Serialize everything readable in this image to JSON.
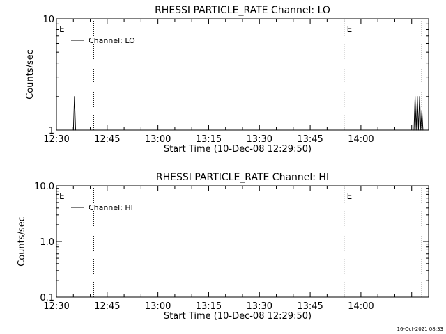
{
  "footer": {
    "timestamp": "16-Oct-2021 08:33"
  },
  "chart_data": [
    {
      "type": "line",
      "title": "RHESSI PARTICLE_RATE Channel: LO",
      "xlabel": "Start Time (10-Dec-08 12:29:50)",
      "ylabel": "Counts/sec",
      "x_unit": "time of day (10-Dec-08)",
      "xlim": [
        "12:30",
        "14:20"
      ],
      "xticks": [
        "12:30",
        "12:45",
        "13:00",
        "13:15",
        "13:30",
        "13:45",
        "14:00"
      ],
      "y_scale": "log",
      "ylim": [
        1,
        10
      ],
      "yticks": [
        {
          "value": 1,
          "label": "1"
        },
        {
          "value": 10,
          "label": "10"
        }
      ],
      "legend": {
        "placement": "top-left",
        "entries": [
          "Channel: LO"
        ]
      },
      "vlines": [
        {
          "x": "12:30",
          "style": "dotted",
          "label": "E"
        },
        {
          "x": "12:41",
          "style": "dotted",
          "label": ""
        },
        {
          "x": "13:55",
          "style": "dotted",
          "label": "E"
        },
        {
          "x": "14:18",
          "style": "dotted",
          "label": ""
        }
      ],
      "series": [
        {
          "name": "Channel: LO",
          "points": [
            {
              "x": "12:35:00",
              "y": 1
            },
            {
              "x": "12:35:20",
              "y": 2
            },
            {
              "x": "12:35:40",
              "y": 1
            },
            {
              "x": "14:15:40",
              "y": 1
            },
            {
              "x": "14:16:00",
              "y": 2
            },
            {
              "x": "14:16:20",
              "y": 1
            },
            {
              "x": "14:16:40",
              "y": 2
            },
            {
              "x": "14:17:00",
              "y": 1
            },
            {
              "x": "14:17:20",
              "y": 2
            },
            {
              "x": "14:17:40",
              "y": 1
            },
            {
              "x": "14:18:00",
              "y": 1.5
            },
            {
              "x": "14:18:20",
              "y": 1
            }
          ]
        }
      ]
    },
    {
      "type": "line",
      "title": "RHESSI PARTICLE_RATE Channel: HI",
      "xlabel": "Start Time (10-Dec-08 12:29:50)",
      "ylabel": "Counts/sec",
      "x_unit": "time of day (10-Dec-08)",
      "xlim": [
        "12:30",
        "14:20"
      ],
      "xticks": [
        "12:30",
        "12:45",
        "13:00",
        "13:15",
        "13:30",
        "13:45",
        "14:00"
      ],
      "y_scale": "log",
      "ylim": [
        0.1,
        10
      ],
      "yticks": [
        {
          "value": 0.1,
          "label": "0.1"
        },
        {
          "value": 1,
          "label": "1.0"
        },
        {
          "value": 10,
          "label": "10.0"
        }
      ],
      "legend": {
        "placement": "top-left",
        "entries": [
          "Channel: HI"
        ]
      },
      "vlines": [
        {
          "x": "12:30",
          "style": "dotted",
          "label": "E"
        },
        {
          "x": "12:41",
          "style": "dotted",
          "label": ""
        },
        {
          "x": "13:55",
          "style": "dotted",
          "label": "E"
        },
        {
          "x": "14:18",
          "style": "dotted",
          "label": ""
        }
      ],
      "series": [
        {
          "name": "Channel: HI",
          "points": []
        }
      ]
    }
  ]
}
